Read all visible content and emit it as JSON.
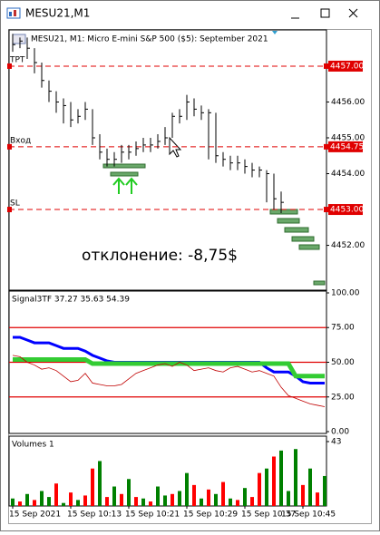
{
  "window": {
    "title": "MESU21,M1"
  },
  "chart_data": [
    {
      "type": "hlc",
      "title": "MESU21, M1:  Micro E-mini S&P 500 ($5): September 2021",
      "annotation": "отклонение: -8,75$",
      "ylim": [
        4450.8,
        4457.96
      ],
      "yticks": [
        {
          "value": 4456,
          "label": "4456.00"
        },
        {
          "value": 4455,
          "label": "4455.00"
        },
        {
          "value": 4454,
          "label": "4454.00"
        },
        {
          "value": 4452,
          "label": "4452.00"
        }
      ],
      "levels": [
        {
          "name": "TPT",
          "value": 4457,
          "label": "4457.00",
          "color": "#e00000"
        },
        {
          "name": "Вход",
          "value": 4454.75,
          "label": "4454.75",
          "color": "#e00000"
        },
        {
          "name": "SL",
          "value": 4453,
          "label": "4453.00",
          "color": "#e00000"
        }
      ],
      "color": "#000000",
      "high": [
        4457.9,
        4457.8,
        4457.8,
        4457.5,
        4457.1,
        4456.6,
        4456.3,
        4456.1,
        4456.0,
        4455.8,
        4456.0,
        4455.8,
        4455.1,
        4454.7,
        4454.6,
        4454.8,
        4454.8,
        4454.9,
        4455.0,
        4455.0,
        4455.1,
        4455.3,
        4455.7,
        4455.8,
        4456.2,
        4456.1,
        4455.9,
        4455.8,
        4455.7,
        4454.6,
        4454.5,
        4454.5,
        4454.4,
        4454.3,
        4454.2,
        4454.1,
        4454.0,
        4453.5,
        null,
        null,
        null,
        null,
        null,
        null
      ],
      "low": [
        4457.4,
        4457.5,
        4457.2,
        4456.8,
        4456.4,
        4456.0,
        4455.7,
        4455.4,
        4455.3,
        4455.4,
        4455.5,
        4454.8,
        4454.4,
        4454.2,
        4454.2,
        4454.3,
        4454.4,
        4454.5,
        4454.6,
        4454.6,
        4454.7,
        4454.8,
        4455.0,
        4455.4,
        4455.5,
        4455.6,
        4455.5,
        4454.4,
        4454.3,
        4454.2,
        4454.1,
        4454.1,
        4454.0,
        4453.9,
        4453.9,
        4453.2,
        4453.0,
        4452.9,
        null,
        null,
        null,
        null,
        null,
        null
      ],
      "close": [
        4457.6,
        4457.7,
        4457.5,
        4457.1,
        4456.6,
        4456.3,
        4456.0,
        4455.9,
        4455.5,
        4455.6,
        4455.8,
        4455.0,
        4454.6,
        4454.4,
        4454.4,
        4454.6,
        4454.6,
        4454.7,
        4454.8,
        4454.8,
        4454.9,
        4455.0,
        4455.6,
        4455.6,
        4456.0,
        4455.8,
        4455.7,
        4455.7,
        4454.5,
        4454.4,
        4454.3,
        4454.3,
        4454.2,
        4454.1,
        4454.1,
        4454.0,
        4453.3,
        4453.2,
        null,
        null,
        null,
        null,
        null,
        null
      ]
    },
    {
      "type": "line",
      "title": "Signal3TF 37.27 35.63 54.39",
      "ylim": [
        -1.3,
        101.3
      ],
      "yticks": [
        {
          "value": 100,
          "label": "100.00"
        },
        {
          "value": 75,
          "label": "75.00"
        },
        {
          "value": 50,
          "label": "50.00"
        },
        {
          "value": 25,
          "label": "25.00"
        },
        {
          "value": 0,
          "label": "0.00"
        }
      ],
      "levels": [
        75,
        50,
        25
      ],
      "level_color": "#e00000",
      "series": [
        {
          "color": "#0000ff",
          "width": 3,
          "values": [
            68,
            68,
            66,
            64,
            64,
            64,
            62,
            60,
            60,
            60,
            58,
            55,
            53,
            51,
            50,
            50,
            50,
            50,
            50,
            50,
            50,
            50,
            50,
            50,
            50,
            50,
            50,
            50,
            50,
            50,
            50,
            50,
            50,
            50,
            50,
            46,
            43,
            43,
            43,
            40,
            36,
            35,
            35,
            35
          ]
        },
        {
          "color": "#33cc33",
          "width": 5,
          "values": [
            52,
            52,
            52,
            52,
            52,
            52,
            52,
            52,
            52,
            52,
            52,
            49,
            49,
            49,
            49,
            49,
            49,
            49,
            49,
            49,
            49,
            49,
            49,
            49,
            49,
            49,
            49,
            49,
            49,
            49,
            49,
            49,
            49,
            49,
            49,
            49,
            49,
            49,
            49,
            40,
            40,
            40,
            40,
            40
          ]
        },
        {
          "color": "#c00000",
          "width": 0.8,
          "values": [
            55,
            54,
            50,
            48,
            45,
            46,
            44,
            40,
            36,
            37,
            42,
            35,
            34,
            33,
            33,
            34,
            38,
            42,
            44,
            46,
            48,
            49,
            47,
            50,
            48,
            44,
            45,
            46,
            44,
            43,
            46,
            47,
            45,
            43,
            44,
            42,
            40,
            32,
            26,
            24,
            22,
            20,
            19,
            18
          ]
        }
      ]
    },
    {
      "type": "bar",
      "title": "Volumes 1",
      "ylim": [
        0,
        45.4
      ],
      "yticks": [
        43
      ],
      "categories": [
        "15 Sep 2021",
        null,
        null,
        null,
        null,
        null,
        null,
        null,
        "15 Sep 10:13",
        null,
        null,
        null,
        null,
        null,
        null,
        null,
        "15 Sep 10:21",
        null,
        null,
        null,
        null,
        null,
        null,
        null,
        "15 Sep 10:29",
        null,
        null,
        null,
        null,
        null,
        null,
        null,
        "15 Sep 10:37",
        null,
        null,
        null,
        null,
        null,
        null,
        null,
        "15 Sep 10:45",
        null,
        null,
        null
      ],
      "values": [
        5,
        3,
        8,
        4,
        10,
        6,
        15,
        2,
        9,
        4,
        7,
        25,
        30,
        6,
        13,
        8,
        18,
        6,
        5,
        3,
        13,
        7,
        8,
        10,
        22,
        14,
        5,
        11,
        8,
        16,
        5,
        4,
        12,
        6,
        22,
        25,
        33,
        37,
        10,
        38,
        14,
        25,
        9,
        20
      ],
      "colors": [
        "#008000",
        "#ff0000",
        "#008000",
        "#ff0000",
        "#008000",
        "#008000",
        "#ff0000",
        "#008000",
        "#ff0000",
        "#008000",
        "#ff0000",
        "#ff0000",
        "#008000",
        "#ff0000",
        "#008000",
        "#ff0000",
        "#008000",
        "#ff0000",
        "#008000",
        "#ff0000",
        "#008000",
        "#008000",
        "#ff0000",
        "#008000",
        "#008000",
        "#ff0000",
        "#008000",
        "#ff0000",
        "#008000",
        "#ff0000",
        "#008000",
        "#ff0000",
        "#008000",
        "#ff0000",
        "#ff0000",
        "#008000",
        "#ff0000",
        "#008000",
        "#008000",
        "#008000",
        "#ff0000",
        "#008000",
        "#ff0000",
        "#008000"
      ]
    }
  ]
}
